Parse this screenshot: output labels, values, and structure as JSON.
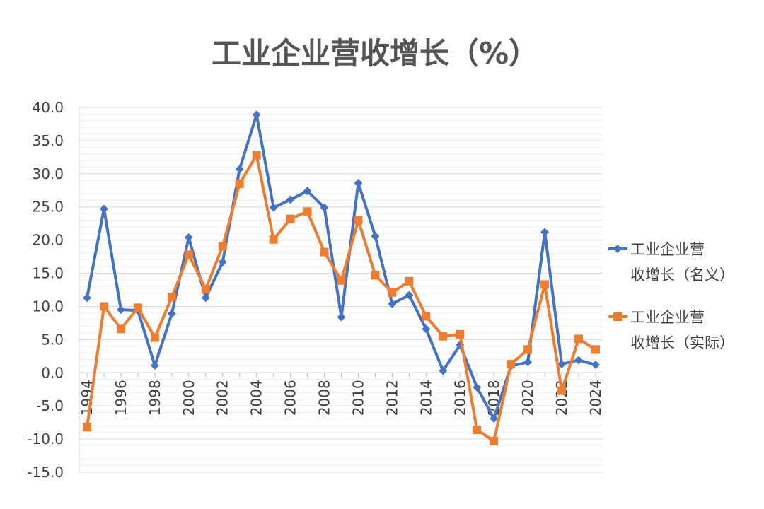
{
  "chart_data": {
    "type": "line",
    "title": "工业企业营收增长（%）",
    "x": [
      1994,
      1995,
      1996,
      1997,
      1998,
      1999,
      2000,
      2001,
      2002,
      2003,
      2004,
      2005,
      2006,
      2007,
      2008,
      2009,
      2010,
      2011,
      2012,
      2013,
      2014,
      2015,
      2016,
      2017,
      2018,
      2019,
      2020,
      2021,
      2022,
      2023,
      2024
    ],
    "ylim": [
      -15,
      40
    ],
    "yticks": [
      "40.0",
      "35.0",
      "30.0",
      "25.0",
      "20.0",
      "15.0",
      "10.0",
      "5.0",
      "0.0",
      "-5.0",
      "-10.0",
      "-15.0"
    ],
    "xticks": [
      "1994",
      "1996",
      "1998",
      "2000",
      "2002",
      "2004",
      "2006",
      "2008",
      "2010",
      "2012",
      "2014",
      "2016",
      "2018",
      "2020",
      "2022",
      "2024"
    ],
    "grid": true,
    "legend_position": "right",
    "series": [
      {
        "name": "工业企业营收增长（名义）",
        "color": "#4472C4",
        "marker": "diamond",
        "values": [
          11.3,
          24.7,
          9.5,
          9.4,
          1.1,
          8.9,
          20.4,
          11.3,
          16.7,
          30.7,
          38.9,
          24.9,
          26.1,
          27.4,
          24.9,
          8.4,
          28.6,
          20.6,
          10.4,
          11.7,
          6.6,
          0.3,
          4.2,
          -2.2,
          -6.9,
          1.0,
          1.6,
          21.2,
          1.3,
          1.9,
          1.2
        ]
      },
      {
        "name": "工业企业营收增长（实际）",
        "color": "#ED7D31",
        "marker": "square",
        "values": [
          -8.2,
          10.0,
          6.6,
          9.8,
          5.3,
          11.4,
          17.8,
          12.6,
          19.1,
          28.5,
          32.8,
          20.1,
          23.2,
          24.3,
          18.2,
          13.9,
          23.0,
          14.7,
          12.1,
          13.8,
          8.5,
          5.5,
          5.8,
          -8.6,
          -10.3,
          1.3,
          3.5,
          13.3,
          -2.7,
          5.1,
          3.5
        ]
      }
    ],
    "legend": {
      "items": [
        {
          "line1": "工业企业营",
          "line2": "收增长（名义）"
        },
        {
          "line1": "工业企业营",
          "line2": "收增长（实际）"
        }
      ]
    }
  }
}
